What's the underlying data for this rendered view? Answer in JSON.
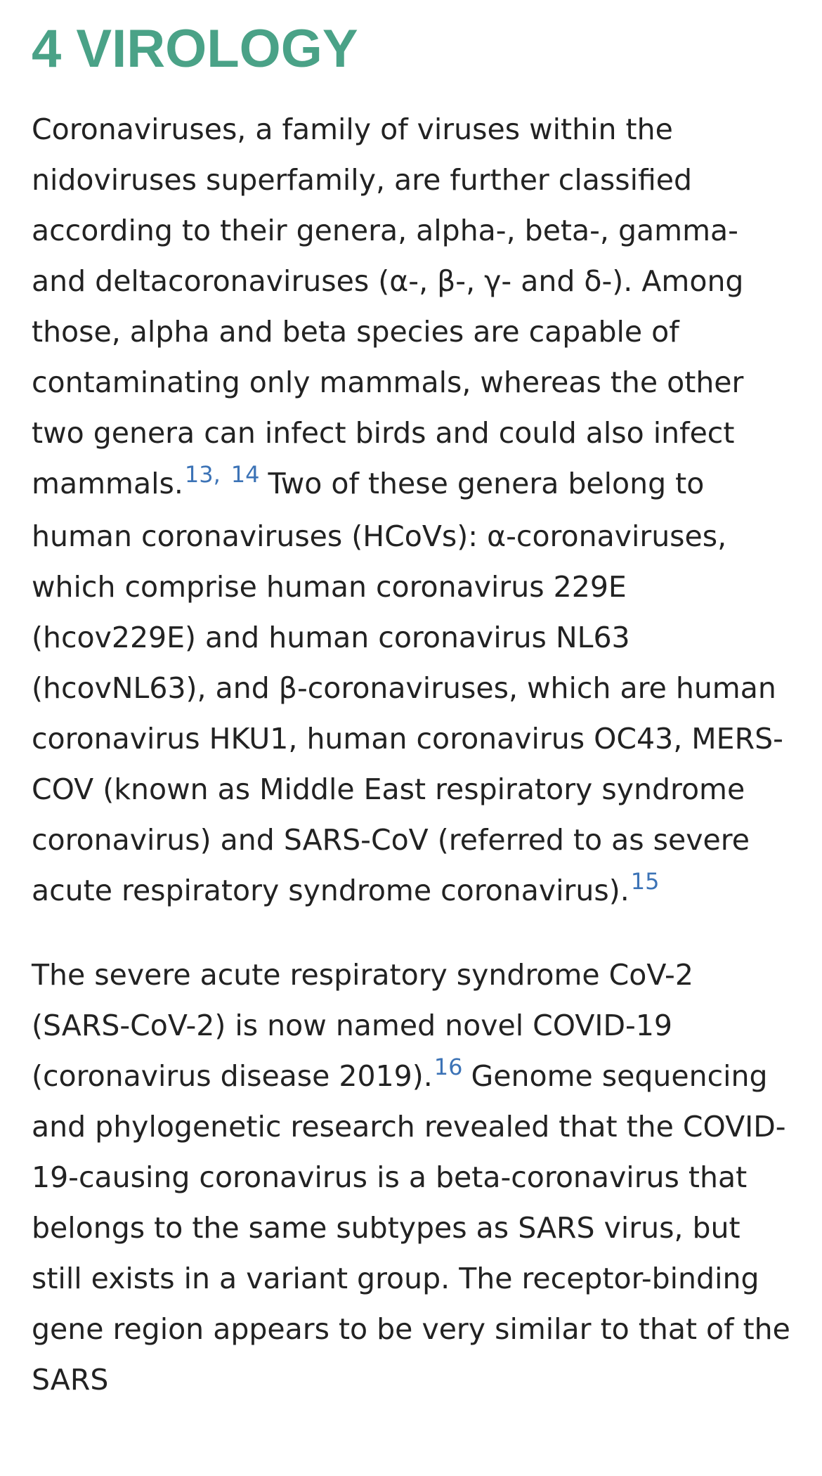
{
  "section": {
    "title": "4 VIROLOGY"
  },
  "paragraph1": {
    "text_a": "Coronaviruses, a family of viruses within the nidoviruses superfamily, are further classified according to their genera, alpha-, beta-, gamma- and deltacoronaviruses (α-, β-, γ- and δ-). Among those, alpha and beta species are capable of contaminating only mammals, whereas the other two genera can infect birds and could also infect mammals.",
    "ref_13": "13",
    "ref_sep": ",",
    "ref_14": "14",
    "text_b": "Two of these genera belong to human coronaviruses (HCoVs): α-coronaviruses, which comprise human coronavirus 229E (hcov229E) and human coronavirus NL63 (hcovNL63), and β-coronaviruses, which are human coronavirus HKU1, human coronavirus OC43, MERS-COV (known as Middle East respiratory syndrome coronavirus) and SARS-CoV (referred to as severe acute respiratory syndrome coronavirus).",
    "ref_15": "15"
  },
  "paragraph2": {
    "text_a": "The severe acute respiratory syndrome CoV-2 (SARS-CoV-2) is now named novel COVID-19 (coronavirus disease 2019).",
    "ref_16": "16",
    "text_b": "Genome sequencing and phylogenetic research revealed that the COVID-19-causing coronavirus is a beta-coronavirus that belongs to the same subtypes as SARS virus, but still exists in a variant group. The receptor-binding gene region appears to be very similar to that of the SARS"
  }
}
